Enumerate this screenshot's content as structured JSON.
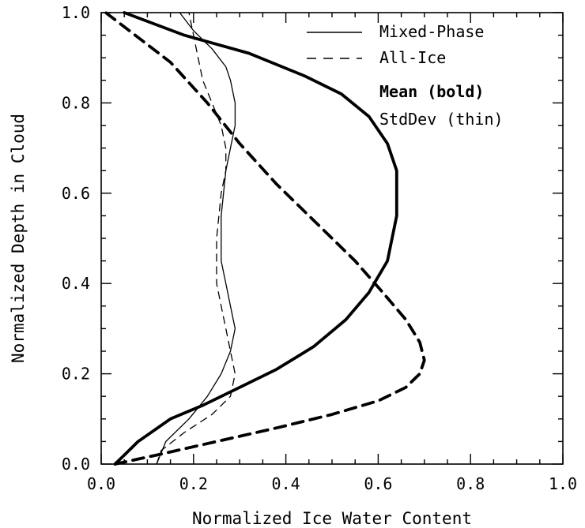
{
  "chart_data": {
    "type": "line",
    "xlabel": "Normalized Ice Water Content",
    "ylabel": "Normalized Depth in Cloud",
    "xlim": [
      0.0,
      1.0
    ],
    "ylim": [
      0.0,
      1.0
    ],
    "xticks": [
      "0.0",
      "0.2",
      "0.4",
      "0.6",
      "0.8",
      "1.0"
    ],
    "yticks": [
      "0.0",
      "0.2",
      "0.4",
      "0.6",
      "0.8",
      "1.0"
    ],
    "xtick_values": [
      0.0,
      0.2,
      0.4,
      0.6,
      0.8,
      1.0
    ],
    "ytick_values": [
      0.0,
      0.2,
      0.4,
      0.6,
      0.8,
      1.0
    ],
    "grid": false,
    "legend": {
      "placement": "top-right",
      "entries": [
        "Mixed-Phase",
        "All-Ice",
        "Mean (bold)",
        "StdDev (thin)"
      ]
    },
    "series": [
      {
        "name": "Mixed-Phase Mean",
        "style": "solid",
        "weight": "bold",
        "x": [
          0.03,
          0.05,
          0.08,
          0.15,
          0.22,
          0.3,
          0.38,
          0.46,
          0.53,
          0.58,
          0.62,
          0.64,
          0.64,
          0.62,
          0.58,
          0.52,
          0.44,
          0.32,
          0.18,
          0.05
        ],
        "y": [
          0.0,
          0.02,
          0.05,
          0.1,
          0.13,
          0.17,
          0.21,
          0.26,
          0.32,
          0.38,
          0.45,
          0.55,
          0.65,
          0.71,
          0.77,
          0.82,
          0.86,
          0.91,
          0.95,
          1.0
        ]
      },
      {
        "name": "All-Ice Mean",
        "style": "dashed",
        "weight": "bold",
        "x": [
          0.03,
          0.12,
          0.25,
          0.38,
          0.5,
          0.6,
          0.66,
          0.69,
          0.7,
          0.69,
          0.66,
          0.61,
          0.55,
          0.47,
          0.38,
          0.3,
          0.23,
          0.15,
          0.01
        ],
        "y": [
          0.0,
          0.02,
          0.05,
          0.08,
          0.11,
          0.14,
          0.17,
          0.2,
          0.23,
          0.27,
          0.32,
          0.38,
          0.45,
          0.53,
          0.62,
          0.71,
          0.8,
          0.89,
          1.0
        ]
      },
      {
        "name": "Mixed-Phase StdDev",
        "style": "solid",
        "weight": "thin",
        "x": [
          0.12,
          0.14,
          0.19,
          0.23,
          0.26,
          0.28,
          0.29,
          0.28,
          0.27,
          0.26,
          0.26,
          0.27,
          0.28,
          0.29,
          0.29,
          0.28,
          0.27,
          0.24,
          0.2,
          0.17
        ],
        "y": [
          0.0,
          0.05,
          0.1,
          0.15,
          0.2,
          0.25,
          0.3,
          0.35,
          0.4,
          0.45,
          0.55,
          0.65,
          0.7,
          0.75,
          0.8,
          0.85,
          0.88,
          0.92,
          0.96,
          1.0
        ]
      },
      {
        "name": "All-Ice StdDev",
        "style": "dashed",
        "weight": "thin",
        "x": [
          0.12,
          0.13,
          0.18,
          0.24,
          0.28,
          0.29,
          0.28,
          0.27,
          0.26,
          0.25,
          0.25,
          0.26,
          0.27,
          0.27,
          0.26,
          0.24,
          0.22,
          0.21,
          0.2,
          0.19
        ],
        "y": [
          0.0,
          0.03,
          0.07,
          0.11,
          0.15,
          0.2,
          0.25,
          0.3,
          0.35,
          0.4,
          0.5,
          0.6,
          0.65,
          0.7,
          0.75,
          0.8,
          0.85,
          0.9,
          0.95,
          1.0
        ]
      }
    ]
  }
}
